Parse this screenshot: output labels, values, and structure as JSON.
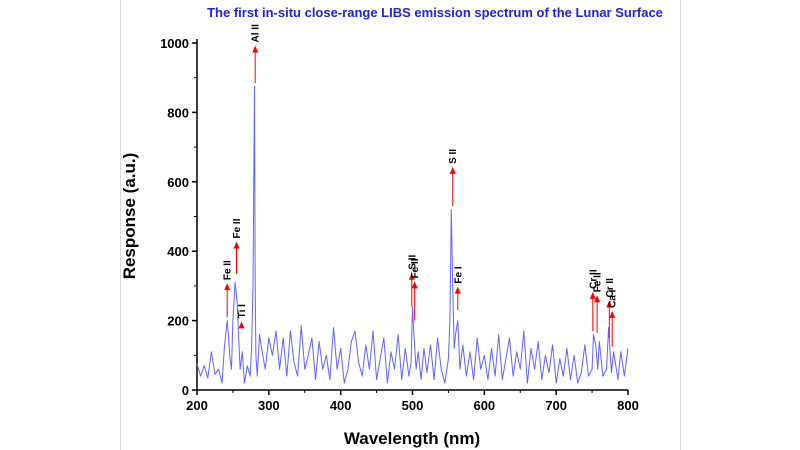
{
  "chart_data": {
    "type": "line",
    "title": "The first in-situ close-range LIBS emission spectrum of the Lunar Surface",
    "xlabel": "Wavelength (nm)",
    "ylabel": "Response (a.u.)",
    "xlim": [
      200,
      800
    ],
    "ylim": [
      0,
      1000
    ],
    "xticks": [
      200,
      300,
      400,
      500,
      600,
      700,
      800
    ],
    "yticks": [
      0,
      200,
      400,
      600,
      800,
      1000
    ],
    "grid": false,
    "series": [
      {
        "color": "#6464ff",
        "x": [
          200,
          205,
          210,
          215,
          220,
          225,
          230,
          235,
          238,
          240,
          242,
          244,
          246,
          248,
          250,
          253,
          256,
          258,
          260,
          263,
          266,
          270,
          274,
          276,
          278,
          280,
          281,
          282,
          284,
          287,
          290,
          295,
          300,
          305,
          310,
          315,
          320,
          325,
          330,
          335,
          340,
          345,
          350,
          355,
          360,
          365,
          370,
          375,
          380,
          385,
          390,
          395,
          400,
          405,
          410,
          415,
          420,
          425,
          430,
          435,
          440,
          445,
          450,
          455,
          460,
          465,
          470,
          475,
          480,
          485,
          490,
          495,
          498,
          500,
          502,
          505,
          508,
          512,
          516,
          520,
          525,
          530,
          535,
          540,
          545,
          550,
          552,
          554,
          556,
          558,
          560,
          563,
          566,
          570,
          575,
          580,
          585,
          590,
          595,
          600,
          605,
          610,
          615,
          620,
          625,
          630,
          635,
          640,
          645,
          650,
          655,
          660,
          665,
          670,
          675,
          680,
          685,
          690,
          695,
          700,
          705,
          710,
          715,
          720,
          725,
          730,
          735,
          740,
          745,
          750,
          752,
          755,
          758,
          760,
          765,
          770,
          773,
          775,
          777,
          780,
          783,
          786,
          790,
          795,
          800
        ],
        "values": [
          75,
          40,
          70,
          35,
          110,
          45,
          60,
          20,
          120,
          160,
          200,
          150,
          90,
          60,
          200,
          310,
          250,
          150,
          60,
          110,
          20,
          70,
          40,
          120,
          300,
          875,
          300,
          100,
          40,
          160,
          120,
          60,
          150,
          100,
          170,
          60,
          150,
          40,
          170,
          80,
          40,
          185,
          60,
          100,
          150,
          30,
          140,
          60,
          100,
          30,
          180,
          60,
          120,
          20,
          60,
          140,
          170,
          80,
          40,
          130,
          60,
          170,
          30,
          90,
          150,
          20,
          110,
          60,
          160,
          30,
          120,
          40,
          80,
          240,
          160,
          60,
          110,
          30,
          120,
          50,
          130,
          30,
          150,
          60,
          20,
          90,
          200,
          520,
          300,
          120,
          160,
          200,
          60,
          130,
          40,
          110,
          30,
          150,
          60,
          100,
          30,
          120,
          40,
          160,
          30,
          90,
          150,
          40,
          110,
          60,
          170,
          20,
          120,
          60,
          140,
          30,
          100,
          50,
          130,
          20,
          90,
          40,
          120,
          30,
          100,
          20,
          50,
          130,
          40,
          60,
          160,
          130,
          60,
          140,
          40,
          60,
          180,
          110,
          50,
          110,
          70,
          30,
          110,
          40,
          120
        ]
      }
    ],
    "annotations": [
      {
        "label": "Fe II",
        "x": 242,
        "y": 210,
        "tip": 305
      },
      {
        "label": "Fe II",
        "x": 255,
        "y": 335,
        "tip": 425
      },
      {
        "label": "Ti I",
        "x": 262,
        "y": 180,
        "tip": 195
      },
      {
        "label": "Al II",
        "x": 281,
        "y": 885,
        "tip": 990
      },
      {
        "label": "S II",
        "x": 499,
        "y": 240,
        "tip": 335
      },
      {
        "label": "Fe II",
        "x": 503,
        "y": 200,
        "tip": 310
      },
      {
        "label": "S II",
        "x": 556,
        "y": 530,
        "tip": 640
      },
      {
        "label": "Fe I",
        "x": 563,
        "y": 230,
        "tip": 295
      },
      {
        "label": "Cr II",
        "x": 751,
        "y": 170,
        "tip": 280
      },
      {
        "label": "Fe II",
        "x": 757,
        "y": 165,
        "tip": 270
      },
      {
        "label": "Cr II",
        "x": 774,
        "y": 150,
        "tip": 255
      },
      {
        "label": "Ca I",
        "x": 778,
        "y": 125,
        "tip": 225
      }
    ],
    "annotation_color": "#ff0000"
  }
}
